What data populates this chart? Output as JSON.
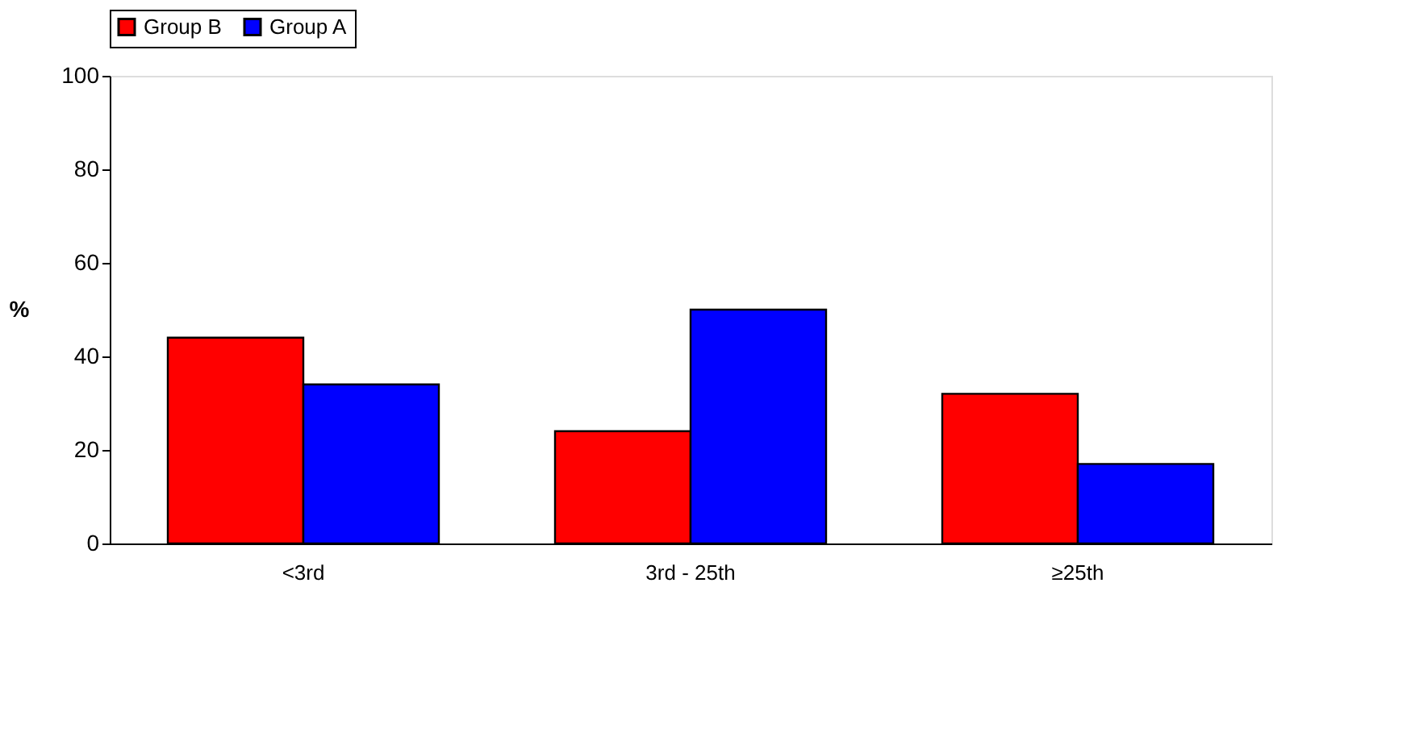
{
  "chart_data": {
    "type": "bar",
    "ylabel": "%",
    "categories": [
      "<3rd",
      "3rd - 25th",
      "≥25th"
    ],
    "series": [
      {
        "name": "Group B",
        "color": "#ff0000",
        "values": [
          44,
          24,
          32
        ]
      },
      {
        "name": "Group A",
        "color": "#0000ff",
        "values": [
          34,
          50,
          17
        ]
      }
    ],
    "ylim": [
      0,
      100
    ],
    "yticks": [
      0,
      20,
      40,
      60,
      80,
      100
    ],
    "grid": false,
    "legend": "top"
  }
}
